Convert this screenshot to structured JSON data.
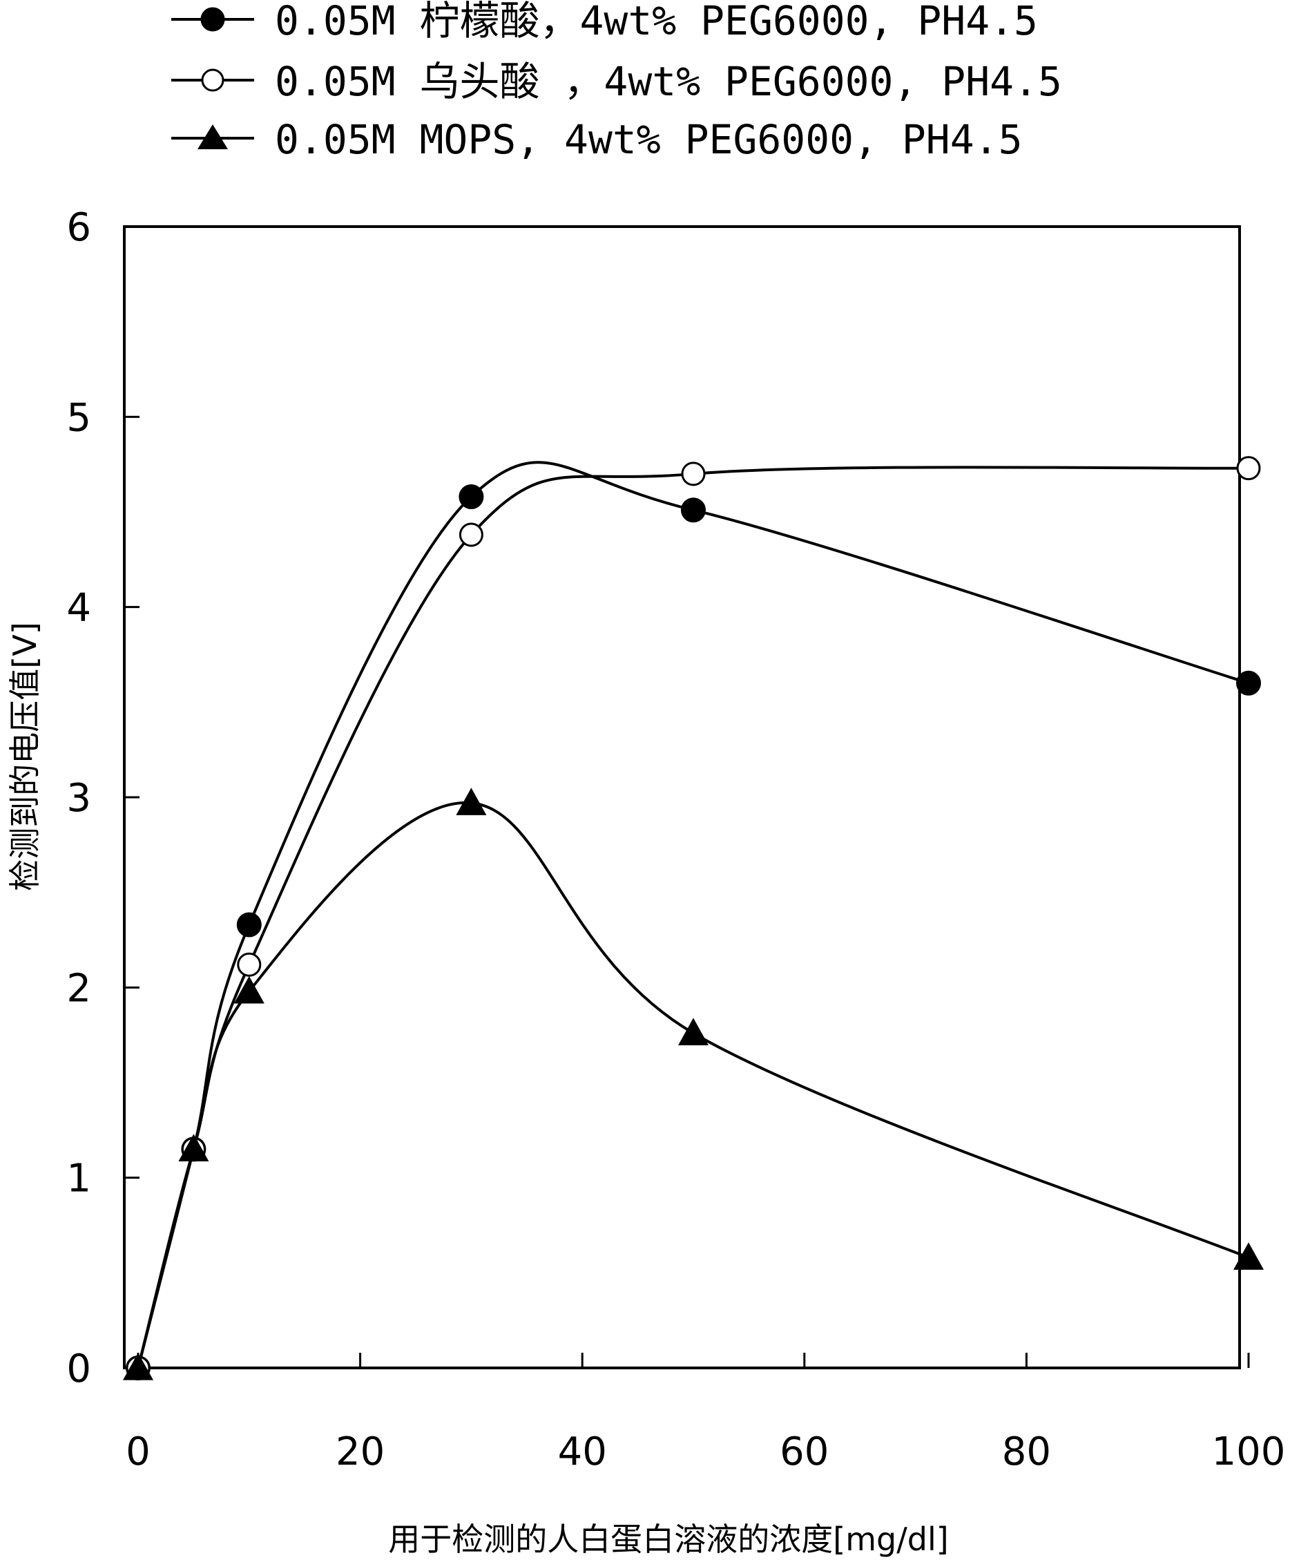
{
  "chart_data": {
    "type": "line",
    "title": "",
    "xlabel": "用于检测的人白蛋白溶液的浓度[mg/dl]",
    "ylabel": "检测到的电压值[V]",
    "xlim": [
      0,
      100
    ],
    "ylim": [
      0,
      6
    ],
    "x_ticks": [
      "0",
      "20",
      "40",
      "60",
      "80",
      "100"
    ],
    "y_ticks": [
      "0",
      "1",
      "2",
      "3",
      "4",
      "5",
      "6"
    ],
    "grid": false,
    "legend_position": "top-left, above plot",
    "series": [
      {
        "name": "0.05M 柠檬酸，4wt% PEG6000, PH4.5",
        "marker": "filled-circle",
        "color": "#000000",
        "x": [
          0,
          5,
          10,
          30,
          50,
          100
        ],
        "y": [
          0.0,
          1.15,
          2.33,
          4.58,
          4.51,
          3.6
        ]
      },
      {
        "name": "0.05M 乌头酸 ，4wt% PEG6000, PH4.5",
        "marker": "open-circle",
        "color": "#000000",
        "x": [
          0,
          5,
          10,
          30,
          50,
          100
        ],
        "y": [
          0.0,
          1.15,
          2.12,
          4.38,
          4.7,
          4.73
        ]
      },
      {
        "name": "0.05M MOPS, 4wt% PEG6000, PH4.5",
        "marker": "filled-triangle",
        "color": "#000000",
        "x": [
          0,
          5,
          10,
          30,
          50,
          100
        ],
        "y": [
          0.0,
          1.15,
          1.98,
          2.97,
          1.76,
          0.58
        ]
      }
    ]
  }
}
